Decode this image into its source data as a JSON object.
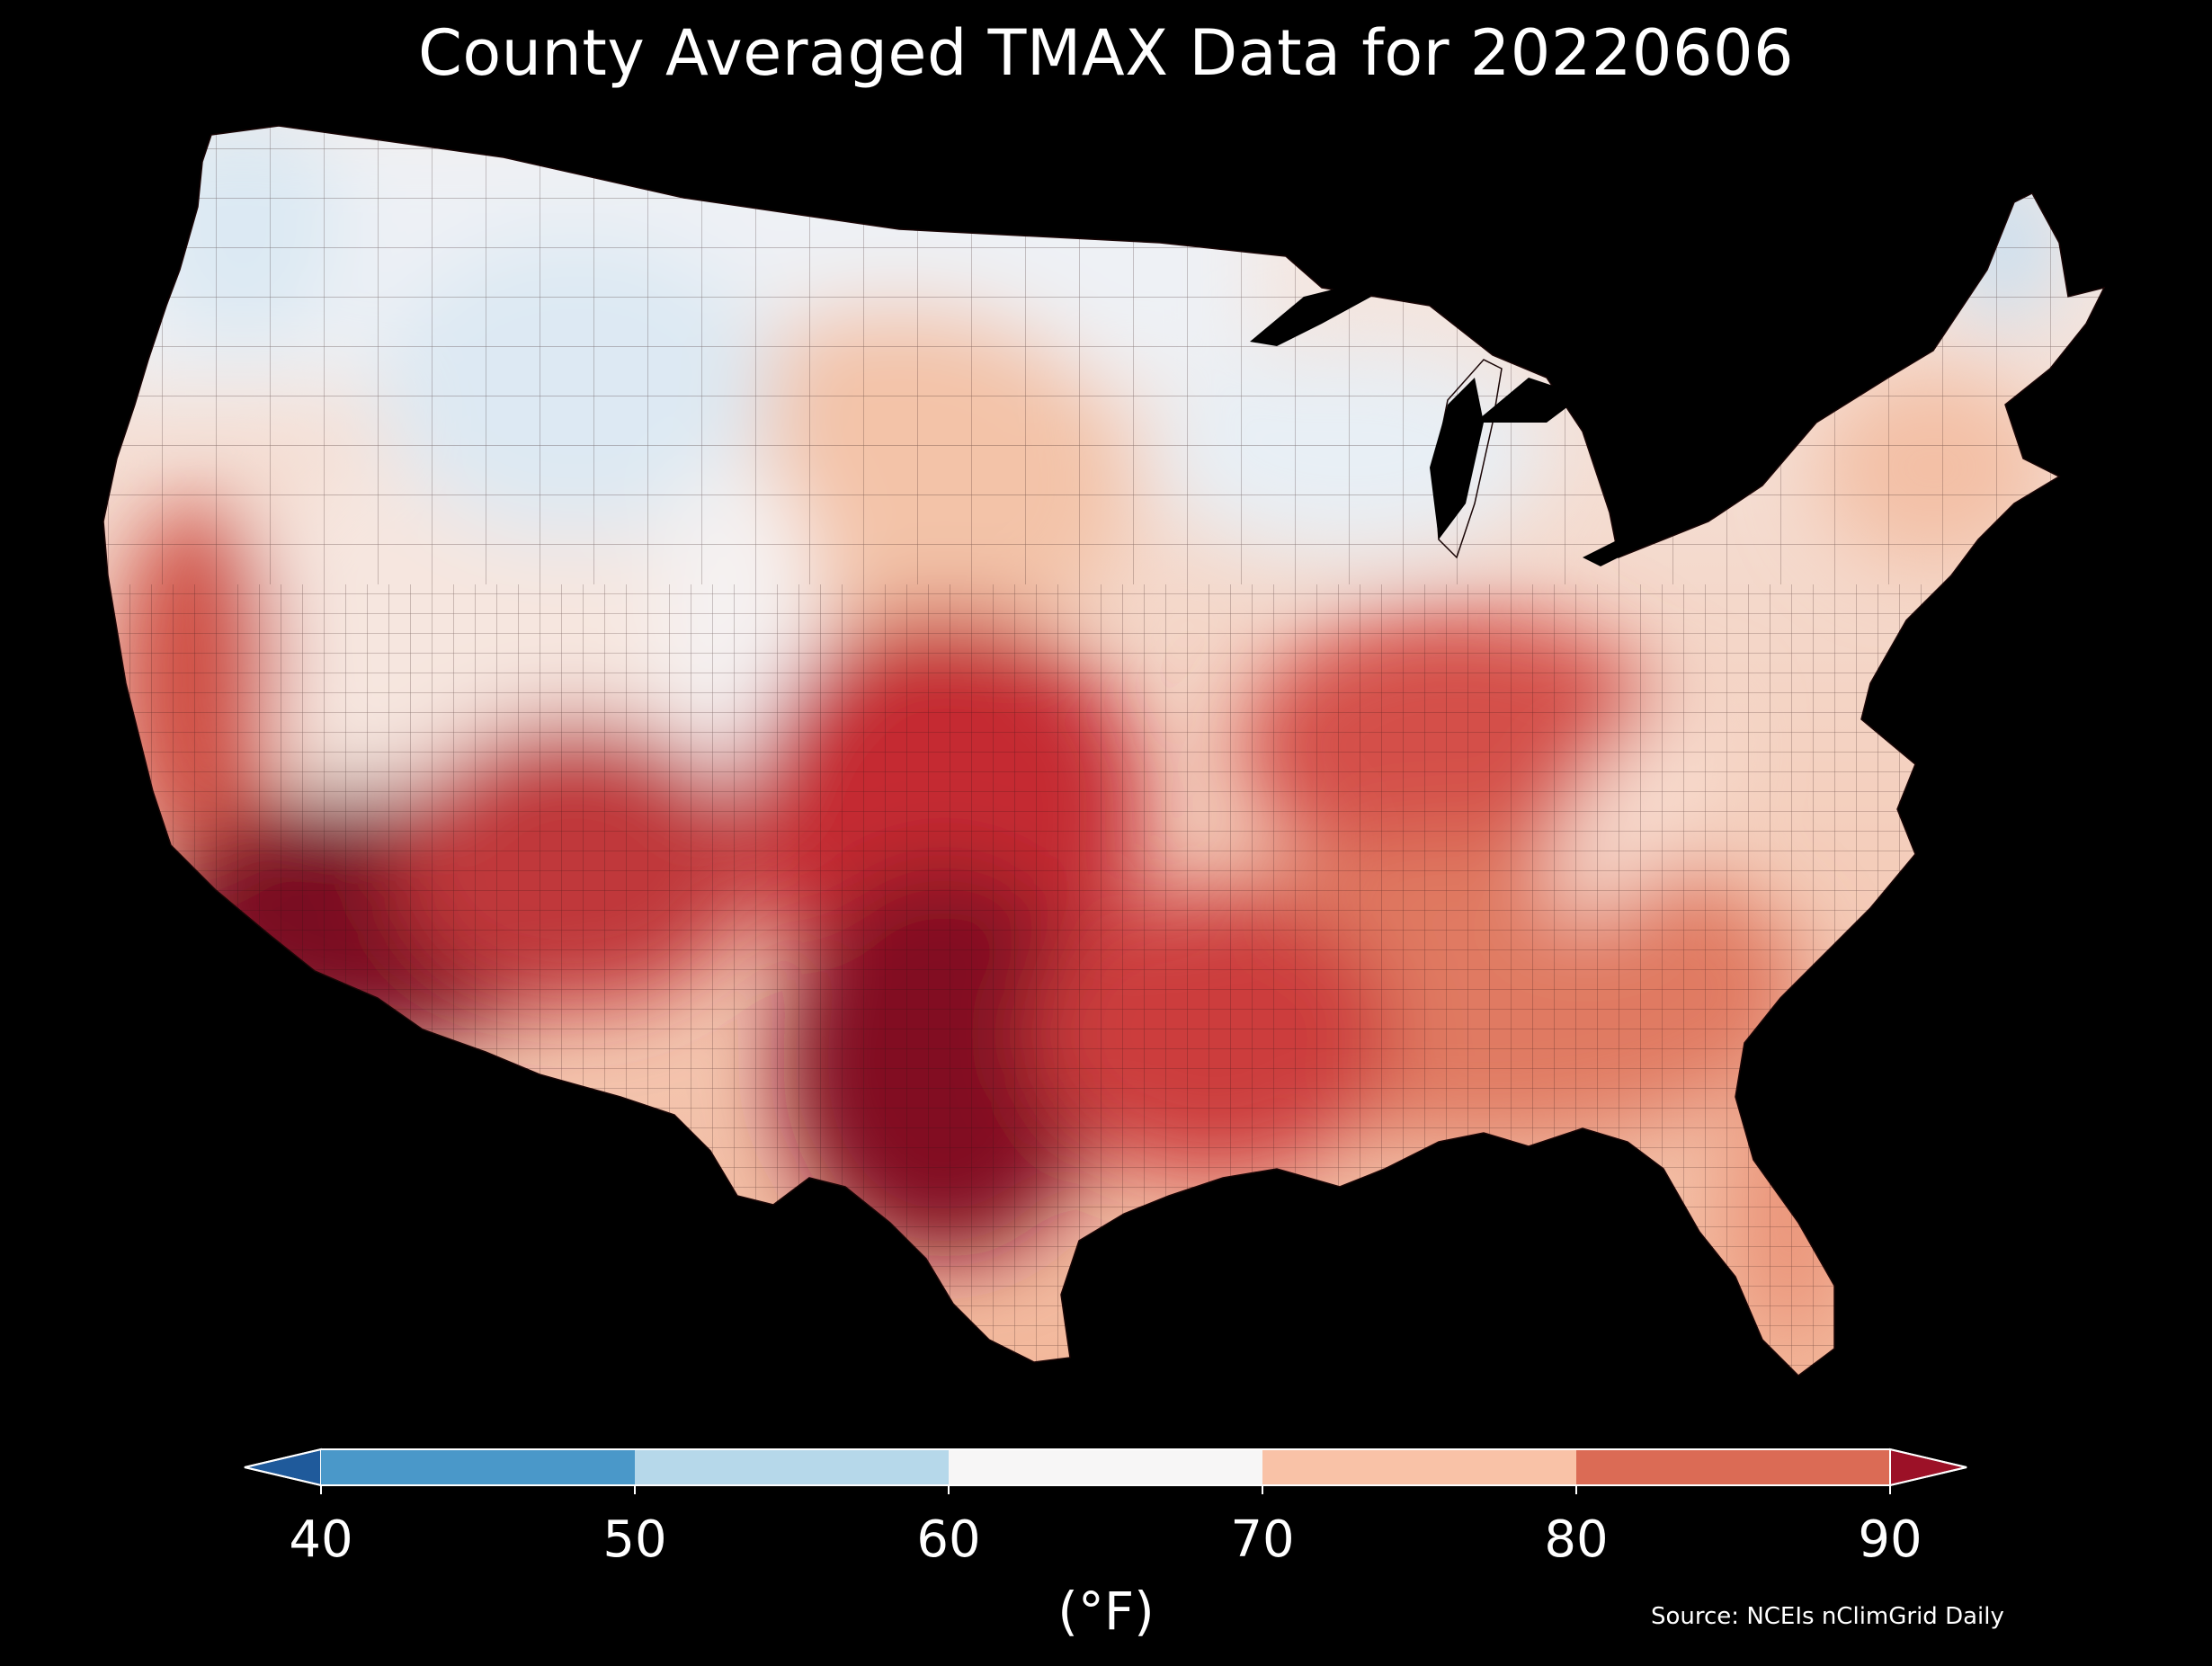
{
  "title": "County Averaged TMAX Data for 20220606",
  "colorbar": {
    "unit_label": "(°F)",
    "ticks": [
      "40",
      "50",
      "60",
      "70",
      "80",
      "90"
    ],
    "bins": [
      {
        "range": [
          40,
          50
        ],
        "color": "#4a98c9"
      },
      {
        "range": [
          50,
          60
        ],
        "color": "#b6d8ea"
      },
      {
        "range": [
          60,
          70
        ],
        "color": "#f7f6f6"
      },
      {
        "range": [
          70,
          80
        ],
        "color": "#f9c2a7"
      },
      {
        "range": [
          80,
          90
        ],
        "color": "#db6b55"
      }
    ],
    "under_color": "#1f5a9b",
    "over_color": "#9c1127",
    "extend": "both"
  },
  "source": "Source: NCEIs nClimGrid Daily",
  "map": {
    "region": "Contiguous United States",
    "variable": "TMAX",
    "date": "20220606",
    "background": "#000000",
    "county_borders": "#2a1010",
    "regional_pattern": [
      {
        "region": "Pacific Northwest coast",
        "approx_value": 55
      },
      {
        "region": "Northern Rockies",
        "approx_value": 58
      },
      {
        "region": "Great Basin",
        "approx_value": 68
      },
      {
        "region": "Northern Plains",
        "approx_value": 72
      },
      {
        "region": "Upper Midwest / Great Lakes",
        "approx_value": 63
      },
      {
        "region": "Northern Maine",
        "approx_value": 55
      },
      {
        "region": "Northeast",
        "approx_value": 76
      },
      {
        "region": "Southern Plains",
        "approx_value": 85
      },
      {
        "region": "Desert Southwest",
        "approx_value": 100
      },
      {
        "region": "South Texas",
        "approx_value": 98
      },
      {
        "region": "Ohio Valley",
        "approx_value": 86
      },
      {
        "region": "Appalachians",
        "approx_value": 70
      },
      {
        "region": "Southeast",
        "approx_value": 82
      },
      {
        "region": "Florida",
        "approx_value": 80
      },
      {
        "region": "California Central Valley",
        "approx_value": 92
      }
    ]
  }
}
